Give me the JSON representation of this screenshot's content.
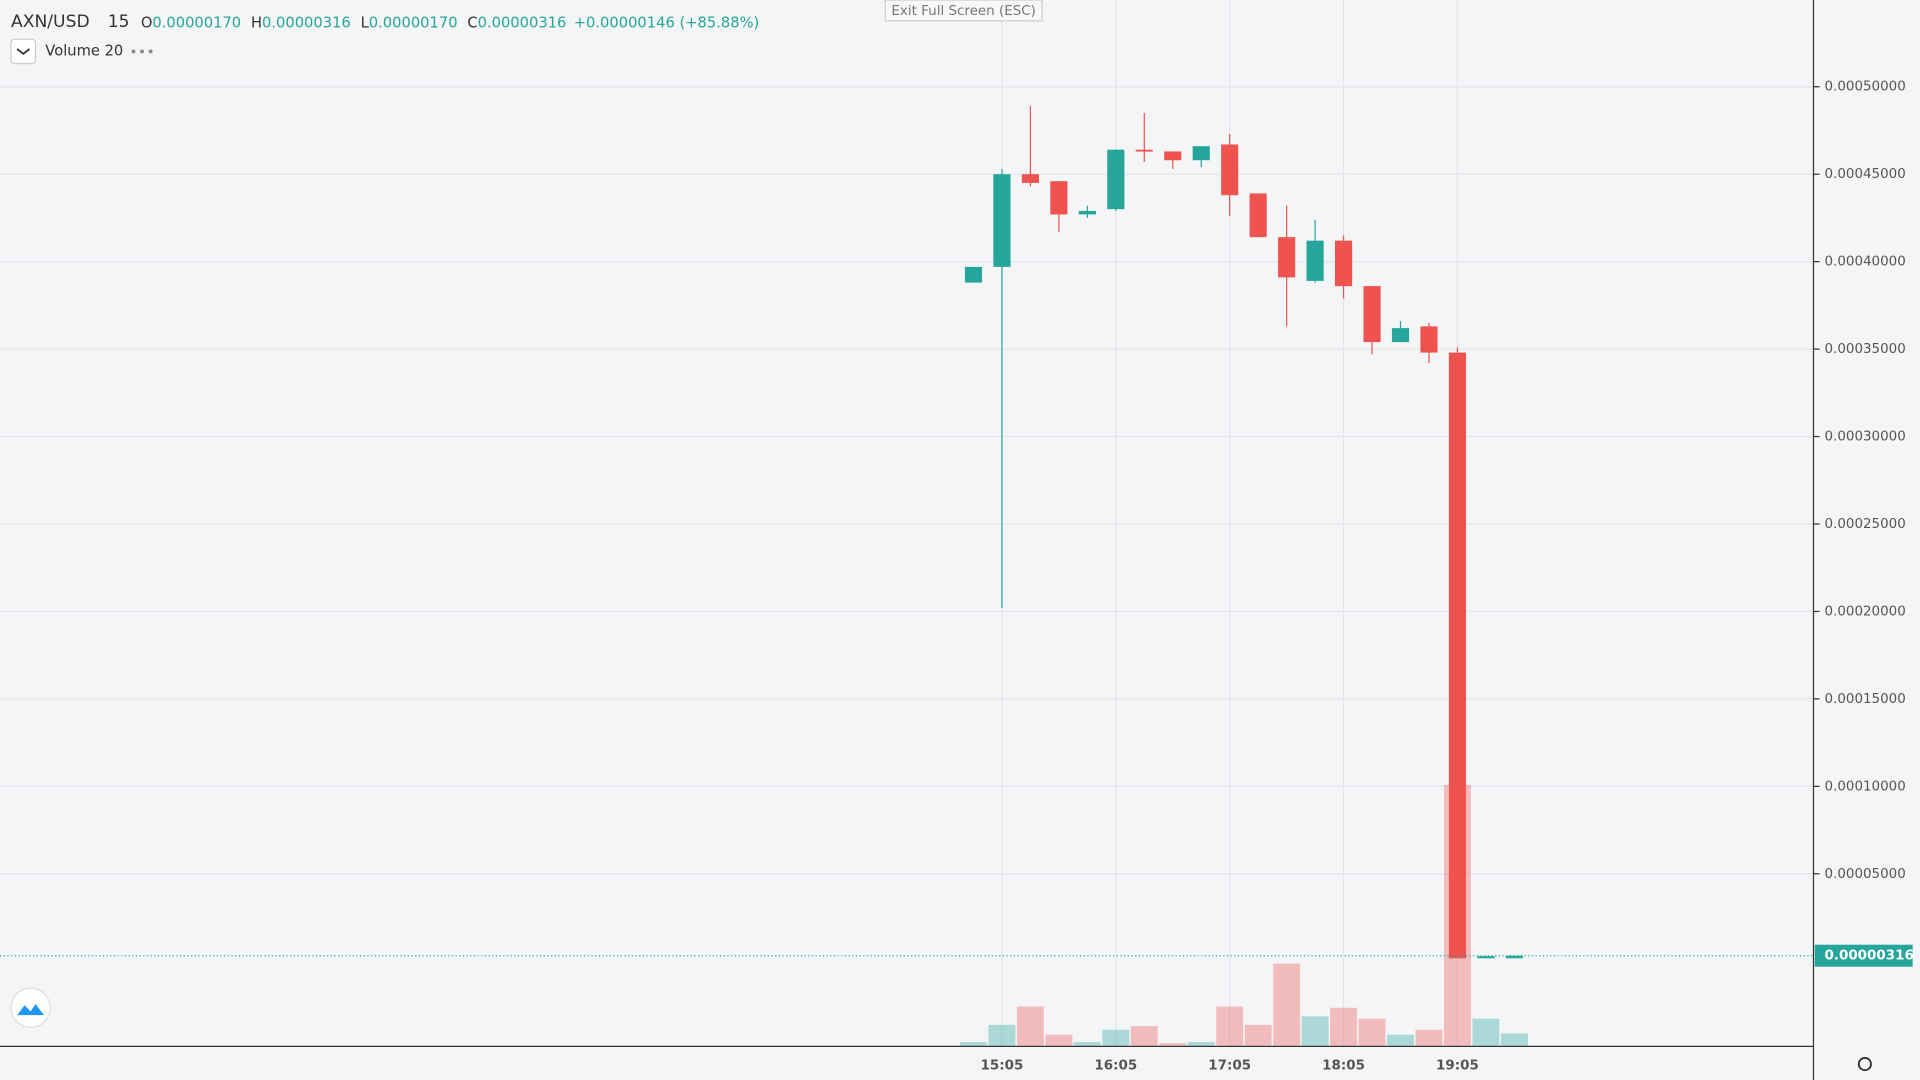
{
  "header": {
    "symbol": "AXN/USD",
    "interval": "15",
    "ohlc": [
      {
        "label": "O",
        "value": "0.00000170"
      },
      {
        "label": "H",
        "value": "0.00000316"
      },
      {
        "label": "L",
        "value": "0.00000170"
      },
      {
        "label": "C",
        "value": "0.00000316"
      }
    ],
    "change": "+0.00000146 (+85.88%)",
    "indicator": "Volume 20",
    "exit_button": "Exit Full Screen (ESC)"
  },
  "chart_data": {
    "type": "candlestick",
    "categories": [
      null,
      "15:05",
      null,
      null,
      null,
      "16:05",
      null,
      null,
      null,
      "17:05",
      null,
      null,
      null,
      "18:05",
      null,
      null,
      null,
      "19:05",
      null,
      null
    ],
    "open": [
      0.000388,
      0.000397,
      0.00045,
      0.000446,
      0.000427,
      0.00043,
      0.000464,
      0.000463,
      0.000458,
      0.000467,
      0.000439,
      0.000414,
      0.000389,
      0.000412,
      0.000386,
      0.000354,
      0.000363,
      0.000348,
      1.7e-06,
      1.7e-06
    ],
    "high": [
      0.000397,
      0.000453,
      0.000489,
      0.000446,
      0.000432,
      0.000464,
      0.000485,
      0.000463,
      0.000466,
      0.000473,
      0.000439,
      0.000432,
      0.000424,
      0.000415,
      0.000386,
      0.000366,
      0.000365,
      0.000351,
      2.9e-06,
      3.16e-06
    ],
    "low": [
      0.000388,
      0.000202,
      0.000443,
      0.000417,
      0.000425,
      0.000429,
      0.000457,
      0.000453,
      0.000454,
      0.000426,
      0.000414,
      0.000363,
      0.000388,
      0.000379,
      0.000347,
      0.000354,
      0.000342,
      1.7e-06,
      1.7e-06,
      1.7e-06
    ],
    "close": [
      0.000397,
      0.00045,
      0.000445,
      0.000427,
      0.000429,
      0.000464,
      0.000463,
      0.000458,
      0.000466,
      0.000438,
      0.000414,
      0.000391,
      0.000412,
      0.000386,
      0.000354,
      0.000362,
      0.000348,
      1.7e-06,
      2.9e-06,
      3.16e-06
    ],
    "volume": [
      3,
      17,
      32,
      9,
      3,
      13,
      16,
      2,
      3,
      32,
      17,
      67,
      24,
      31,
      22,
      9,
      13,
      213,
      22,
      10
    ],
    "up_color": "#26a69a",
    "down_color": "#ef5350",
    "ylim": [
      -4.83e-05,
      0.0005496
    ],
    "yticks": [
      {
        "value": 5e-05,
        "label": "0.00005000"
      },
      {
        "value": 0.0001,
        "label": "0.00010000"
      },
      {
        "value": 0.00015,
        "label": "0.00015000"
      },
      {
        "value": 0.0002,
        "label": "0.00020000"
      },
      {
        "value": 0.00025,
        "label": "0.00025000"
      },
      {
        "value": 0.0003,
        "label": "0.00030000"
      },
      {
        "value": 0.00035,
        "label": "0.00035000"
      },
      {
        "value": 0.0004,
        "label": "0.00040000"
      },
      {
        "value": 0.00045,
        "label": "0.00045000"
      },
      {
        "value": 0.0005,
        "label": "0.00050000"
      }
    ],
    "last_price": {
      "value": 3.16e-06,
      "label": "0.00000316"
    },
    "grid": true
  }
}
